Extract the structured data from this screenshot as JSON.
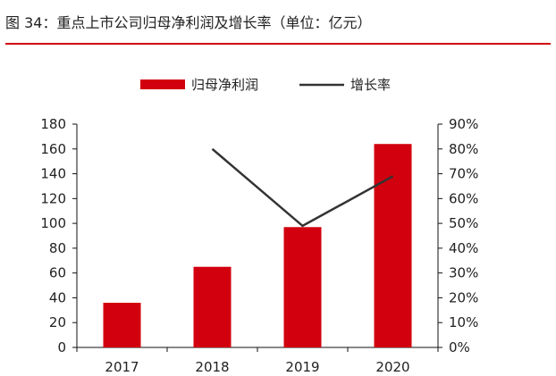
{
  "figure": {
    "title": "图 34：重点上市公司归母净利润及增长率（单位：亿元）"
  },
  "colors": {
    "accent_red": "#d2000f",
    "line": "#333333",
    "axis": "#111111"
  },
  "chart_data": {
    "type": "bar",
    "categories": [
      "2017",
      "2018",
      "2019",
      "2020"
    ],
    "series": [
      {
        "name": "归母净利润",
        "type": "bar",
        "axis": "left",
        "values": [
          36,
          65,
          97,
          164
        ]
      },
      {
        "name": "增长率",
        "type": "line",
        "axis": "right",
        "values": [
          null,
          0.8,
          0.49,
          0.69
        ]
      }
    ],
    "y_left": {
      "ylim": [
        0,
        180
      ],
      "ticks": [
        "0",
        "20",
        "40",
        "60",
        "80",
        "100",
        "120",
        "140",
        "160",
        "180"
      ]
    },
    "y_right": {
      "ylim": [
        0,
        0.9
      ],
      "ticks": [
        "0%",
        "10%",
        "20%",
        "30%",
        "40%",
        "50%",
        "60%",
        "70%",
        "80%",
        "90%"
      ]
    },
    "legend": {
      "position": "top",
      "items": [
        "归母净利润",
        "增长率"
      ]
    },
    "grid": false
  }
}
